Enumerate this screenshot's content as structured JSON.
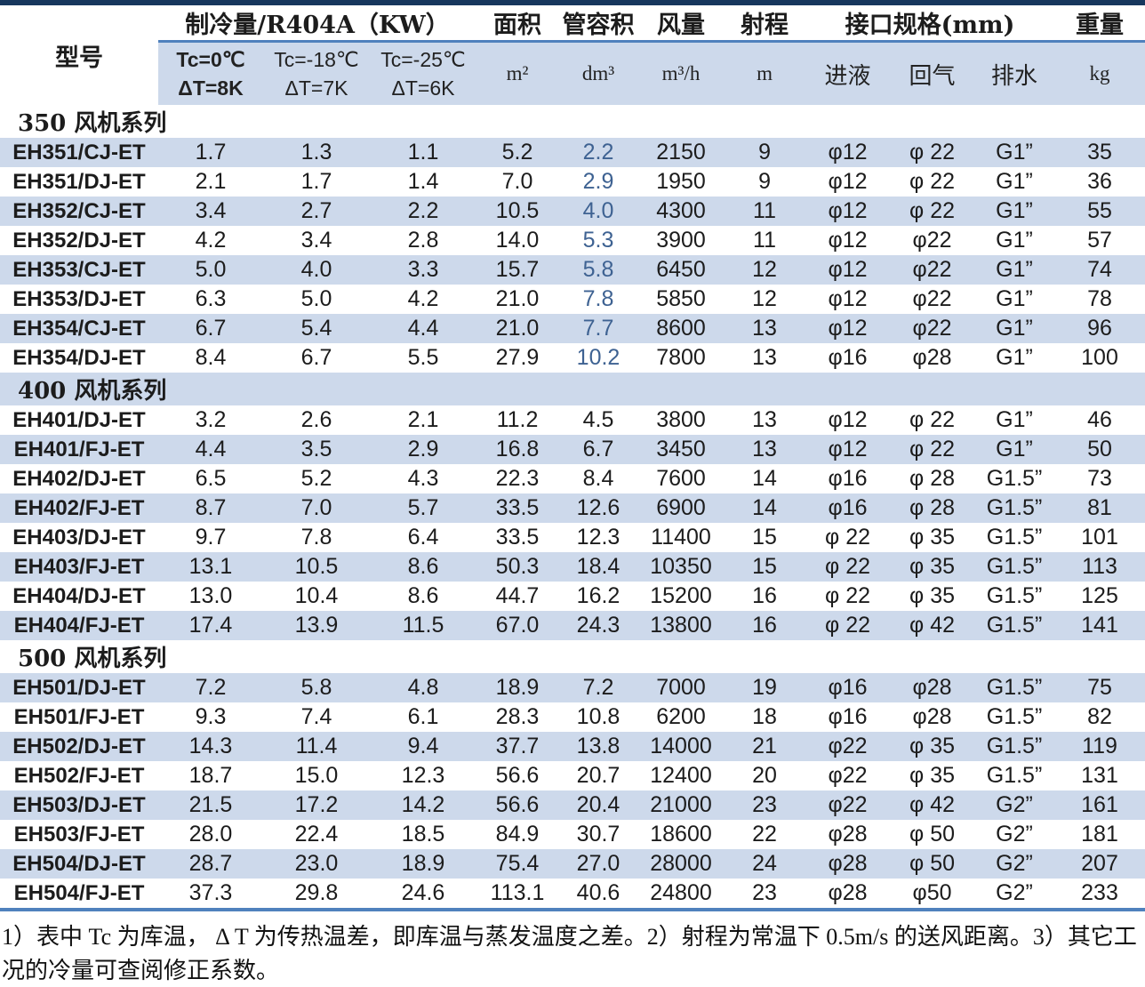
{
  "colors": {
    "navy": "#17375d",
    "line": "#4f81bd",
    "stripe": "#cdd9eb",
    "ink": "#1c1c1c",
    "vol-accent": "#3e6292"
  },
  "page": {
    "note": "1）表中 Tc 为库温， Δ T 为传热温差，即库温与蒸发温度之差。2）射程为常温下 0.5m/s 的送风距离。3）其它工况的冷量可查阅修正系数。"
  },
  "table": {
    "header": {
      "model": "型号",
      "cooling_group": "制冷量/R404A（KW）",
      "area": "面积",
      "tube_volume": "管容积",
      "airflow": "风量",
      "throw": "射程",
      "connections_group": "接口规格(mm)",
      "weight": "重量",
      "sub": {
        "tc1": {
          "line1": "Tc=0℃",
          "line2": "ΔT=8K"
        },
        "tc2": {
          "line1": "Tc=-18℃",
          "line2": "ΔT=7K"
        },
        "tc3": {
          "line1": "Tc=-25℃",
          "line2": "ΔT=6K"
        },
        "area_unit": "m²",
        "tube_volume_unit": "dm³",
        "airflow_unit": "m³/h",
        "throw_unit": "m",
        "inlet": "进液",
        "return_gas": "回气",
        "drain": "排水",
        "weight_unit": "kg"
      }
    },
    "series": [
      {
        "name": "350 风机系列",
        "vol_accent": true,
        "rows": [
          [
            "EH351/CJ-ET",
            "1.7",
            "1.3",
            "1.1",
            "5.2",
            "2.2",
            "2150",
            "9",
            "φ12",
            "φ 22",
            "G1”",
            "35"
          ],
          [
            "EH351/DJ-ET",
            "2.1",
            "1.7",
            "1.4",
            "7.0",
            "2.9",
            "1950",
            "9",
            "φ12",
            "φ 22",
            "G1”",
            "36"
          ],
          [
            "EH352/CJ-ET",
            "3.4",
            "2.7",
            "2.2",
            "10.5",
            "4.0",
            "4300",
            "11",
            "φ12",
            "φ 22",
            "G1”",
            "55"
          ],
          [
            "EH352/DJ-ET",
            "4.2",
            "3.4",
            "2.8",
            "14.0",
            "5.3",
            "3900",
            "11",
            "φ12",
            "φ22",
            "G1”",
            "57"
          ],
          [
            "EH353/CJ-ET",
            "5.0",
            "4.0",
            "3.3",
            "15.7",
            "5.8",
            "6450",
            "12",
            "φ12",
            "φ22",
            "G1”",
            "74"
          ],
          [
            "EH353/DJ-ET",
            "6.3",
            "5.0",
            "4.2",
            "21.0",
            "7.8",
            "5850",
            "12",
            "φ12",
            "φ22",
            "G1”",
            "78"
          ],
          [
            "EH354/CJ-ET",
            "6.7",
            "5.4",
            "4.4",
            "21.0",
            "7.7",
            "8600",
            "13",
            "φ12",
            "φ22",
            "G1”",
            "96"
          ],
          [
            "EH354/DJ-ET",
            "8.4",
            "6.7",
            "5.5",
            "27.9",
            "10.2",
            "7800",
            "13",
            "φ16",
            "φ28",
            "G1”",
            "100"
          ]
        ]
      },
      {
        "name": "400 风机系列",
        "vol_accent": false,
        "rows": [
          [
            "EH401/DJ-ET",
            "3.2",
            "2.6",
            "2.1",
            "11.2",
            "4.5",
            "3800",
            "13",
            "φ12",
            "φ 22",
            "G1”",
            "46"
          ],
          [
            "EH401/FJ-ET",
            "4.4",
            "3.5",
            "2.9",
            "16.8",
            "6.7",
            "3450",
            "13",
            "φ12",
            "φ 22",
            "G1”",
            "50"
          ],
          [
            "EH402/DJ-ET",
            "6.5",
            "5.2",
            "4.3",
            "22.3",
            "8.4",
            "7600",
            "14",
            "φ16",
            "φ 28",
            "G1.5”",
            "73"
          ],
          [
            "EH402/FJ-ET",
            "8.7",
            "7.0",
            "5.7",
            "33.5",
            "12.6",
            "6900",
            "14",
            "φ16",
            "φ 28",
            "G1.5”",
            "81"
          ],
          [
            "EH403/DJ-ET",
            "9.7",
            "7.8",
            "6.4",
            "33.5",
            "12.3",
            "11400",
            "15",
            "φ 22",
            "φ 35",
            "G1.5”",
            "101"
          ],
          [
            "EH403/FJ-ET",
            "13.1",
            "10.5",
            "8.6",
            "50.3",
            "18.4",
            "10350",
            "15",
            "φ 22",
            "φ 35",
            "G1.5”",
            "113"
          ],
          [
            "EH404/DJ-ET",
            "13.0",
            "10.4",
            "8.6",
            "44.7",
            "16.2",
            "15200",
            "16",
            "φ 22",
            "φ 35",
            "G1.5”",
            "125"
          ],
          [
            "EH404/FJ-ET",
            "17.4",
            "13.9",
            "11.5",
            "67.0",
            "24.3",
            "13800",
            "16",
            "φ 22",
            "φ 42",
            "G1.5”",
            "141"
          ]
        ]
      },
      {
        "name": "500 风机系列",
        "vol_accent": false,
        "rows": [
          [
            "EH501/DJ-ET",
            "7.2",
            "5.8",
            "4.8",
            "18.9",
            "7.2",
            "7000",
            "19",
            "φ16",
            "φ28",
            "G1.5”",
            "75"
          ],
          [
            "EH501/FJ-ET",
            "9.3",
            "7.4",
            "6.1",
            "28.3",
            "10.8",
            "6200",
            "18",
            "φ16",
            "φ28",
            "G1.5”",
            "82"
          ],
          [
            "EH502/DJ-ET",
            "14.3",
            "11.4",
            "9.4",
            "37.7",
            "13.8",
            "14000",
            "21",
            "φ22",
            "φ 35",
            "G1.5”",
            "119"
          ],
          [
            "EH502/FJ-ET",
            "18.7",
            "15.0",
            "12.3",
            "56.6",
            "20.7",
            "12400",
            "20",
            "φ22",
            "φ 35",
            "G1.5”",
            "131"
          ],
          [
            "EH503/DJ-ET",
            "21.5",
            "17.2",
            "14.2",
            "56.6",
            "20.4",
            "21000",
            "23",
            "φ22",
            "φ 42",
            "G2”",
            "161"
          ],
          [
            "EH503/FJ-ET",
            "28.0",
            "22.4",
            "18.5",
            "84.9",
            "30.7",
            "18600",
            "22",
            "φ28",
            "φ 50",
            "G2”",
            "181"
          ],
          [
            "EH504/DJ-ET",
            "28.7",
            "23.0",
            "18.9",
            "75.4",
            "27.0",
            "28000",
            "24",
            "φ28",
            "φ 50",
            "G2”",
            "207"
          ],
          [
            "EH504/FJ-ET",
            "37.3",
            "29.8",
            "24.6",
            "113.1",
            "40.6",
            "24800",
            "23",
            "φ28",
            "φ50",
            "G2”",
            "233"
          ]
        ]
      }
    ]
  }
}
